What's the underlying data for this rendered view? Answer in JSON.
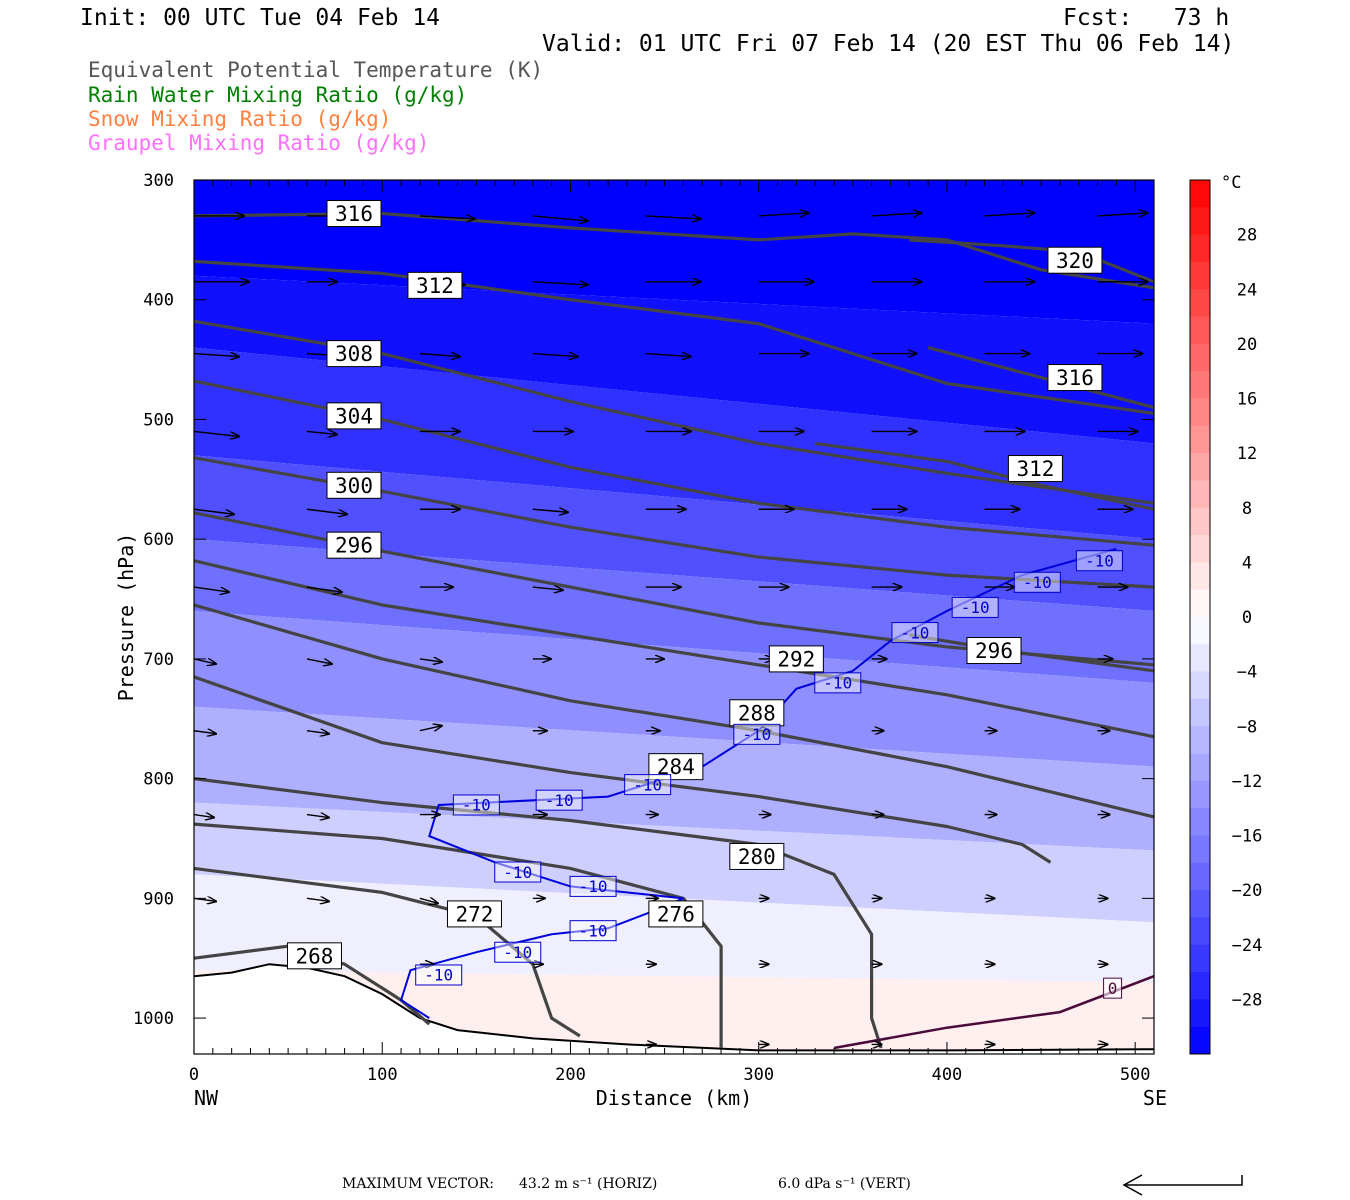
{
  "header": {
    "init": "Init: 00 UTC Tue 04 Feb 14",
    "fcst": "Fcst:   73 h",
    "valid": "Valid: 01 UTC Fri 07 Feb 14 (20 EST Thu 06 Feb 14)"
  },
  "legend": [
    {
      "label": "Equivalent Potential Temperature (K)",
      "color": "#555555"
    },
    {
      "label": "Rain Water Mixing Ratio (g/kg)",
      "color": "#008000"
    },
    {
      "label": "Snow Mixing Ratio (g/kg)",
      "color": "#ff8040"
    },
    {
      "label": "Graupel Mixing Ratio (g/kg)",
      "color": "#ff70ff"
    }
  ],
  "footer": {
    "max_vector_label": "MAXIMUM VECTOR:",
    "horiz": "43.2 m s⁻¹ (HORIZ)",
    "vert": "6.0 dPa s⁻¹ (VERT)"
  },
  "chart_data": {
    "type": "cross-section",
    "xlabel": "Distance (km)",
    "ylabel": "Pressure (hPa)",
    "x_ticks": [
      0,
      100,
      200,
      300,
      400,
      500
    ],
    "x_end_labels": {
      "left": "NW",
      "right": "SE"
    },
    "y_ticks": [
      300,
      400,
      500,
      600,
      700,
      800,
      900,
      1000
    ],
    "xlim": [
      0,
      510
    ],
    "ylim": [
      300,
      1030
    ],
    "colorbar": {
      "unit": "°C",
      "tick_labels": [
        28,
        24,
        20,
        16,
        12,
        8,
        4,
        0,
        -4,
        -8,
        -12,
        -16,
        -20,
        -24,
        -28
      ],
      "range": [
        -32,
        32
      ],
      "step": 2
    },
    "temperature_fill_lines": [
      {
        "p_left": 300,
        "p_right": 300,
        "t": -40
      },
      {
        "p_left": 380,
        "p_right": 420,
        "t": -32
      },
      {
        "p_left": 440,
        "p_right": 520,
        "t": -28
      },
      {
        "p_left": 530,
        "p_right": 600,
        "t": -24
      },
      {
        "p_left": 600,
        "p_right": 660,
        "t": -20
      },
      {
        "p_left": 660,
        "p_right": 720,
        "t": -16
      },
      {
        "p_left": 740,
        "p_right": 790,
        "t": -12
      },
      {
        "p_left": 820,
        "p_right": 860,
        "t": -8
      },
      {
        "p_left": 880,
        "p_right": 920,
        "t": -4
      },
      {
        "p_left": 960,
        "p_right": 970,
        "t": 0
      },
      {
        "p_left": 1040,
        "p_right": 1040,
        "t": 4
      }
    ],
    "theta_e_contours": [
      {
        "label": "316",
        "points": [
          [
            0,
            330
          ],
          [
            100,
            328
          ],
          [
            200,
            340
          ],
          [
            300,
            350
          ],
          [
            350,
            345
          ],
          [
            400,
            350
          ],
          [
            450,
            375
          ],
          [
            510,
            390
          ]
        ],
        "label_at": [
          85,
          328
        ]
      },
      {
        "label": "320",
        "points": [
          [
            380,
            350
          ],
          [
            430,
            355
          ],
          [
            470,
            360
          ],
          [
            510,
            385
          ]
        ],
        "label_at": [
          468,
          367
        ]
      },
      {
        "label": "312",
        "points": [
          [
            0,
            368
          ],
          [
            100,
            378
          ],
          [
            200,
            400
          ],
          [
            300,
            420
          ],
          [
            400,
            470
          ],
          [
            510,
            495
          ]
        ],
        "label_at": [
          128,
          388
        ]
      },
      {
        "label": "316",
        "points": [
          [
            390,
            440
          ],
          [
            450,
            465
          ],
          [
            510,
            490
          ]
        ],
        "label_at": [
          468,
          465
        ]
      },
      {
        "label": "308",
        "points": [
          [
            0,
            418
          ],
          [
            100,
            445
          ],
          [
            200,
            485
          ],
          [
            300,
            520
          ],
          [
            400,
            545
          ],
          [
            510,
            570
          ]
        ],
        "label_at": [
          85,
          445
        ]
      },
      {
        "label": "304",
        "points": [
          [
            0,
            468
          ],
          [
            100,
            500
          ],
          [
            200,
            540
          ],
          [
            300,
            570
          ],
          [
            400,
            590
          ],
          [
            510,
            605
          ]
        ],
        "label_at": [
          85,
          497
        ]
      },
      {
        "label": "312",
        "points": [
          [
            330,
            520
          ],
          [
            400,
            535
          ],
          [
            450,
            555
          ],
          [
            510,
            575
          ]
        ],
        "label_at": [
          447,
          541
        ]
      },
      {
        "label": "300",
        "points": [
          [
            0,
            532
          ],
          [
            100,
            560
          ],
          [
            200,
            590
          ],
          [
            300,
            615
          ],
          [
            400,
            630
          ],
          [
            510,
            640
          ]
        ],
        "label_at": [
          85,
          555
        ]
      },
      {
        "label": "296",
        "points": [
          [
            0,
            578
          ],
          [
            100,
            610
          ],
          [
            200,
            640
          ],
          [
            300,
            670
          ],
          [
            400,
            690
          ],
          [
            510,
            705
          ]
        ],
        "label_at": [
          85,
          605
        ]
      },
      {
        "label": "296",
        "points": [
          [
            380,
            680
          ],
          [
            430,
            693
          ],
          [
            510,
            710
          ]
        ],
        "label_at": [
          425,
          693
        ]
      },
      {
        "label": "292",
        "points": [
          [
            0,
            618
          ],
          [
            100,
            655
          ],
          [
            200,
            680
          ],
          [
            300,
            705
          ],
          [
            400,
            730
          ],
          [
            510,
            765
          ]
        ],
        "label_at": [
          320,
          700
        ]
      },
      {
        "label": "288",
        "points": [
          [
            0,
            655
          ],
          [
            100,
            700
          ],
          [
            200,
            735
          ],
          [
            300,
            760
          ],
          [
            400,
            790
          ],
          [
            510,
            832
          ]
        ],
        "label_at": [
          299,
          745
        ]
      },
      {
        "label": "284",
        "points": [
          [
            0,
            715
          ],
          [
            100,
            770
          ],
          [
            200,
            795
          ],
          [
            300,
            815
          ],
          [
            400,
            840
          ],
          [
            440,
            855
          ],
          [
            455,
            870
          ]
        ],
        "label_at": [
          256,
          790
        ]
      },
      {
        "label": "280",
        "points": [
          [
            0,
            800
          ],
          [
            100,
            820
          ],
          [
            200,
            835
          ],
          [
            300,
            855
          ],
          [
            340,
            880
          ],
          [
            360,
            930
          ],
          [
            360,
            1000
          ],
          [
            365,
            1025
          ]
        ],
        "label_at": [
          299,
          865
        ]
      },
      {
        "label": "276",
        "points": [
          [
            0,
            838
          ],
          [
            100,
            850
          ],
          [
            200,
            875
          ],
          [
            260,
            900
          ],
          [
            280,
            940
          ],
          [
            280,
            1025
          ]
        ],
        "label_at": [
          256,
          913
        ]
      },
      {
        "label": "272",
        "points": [
          [
            0,
            875
          ],
          [
            100,
            895
          ],
          [
            150,
            915
          ],
          [
            180,
            955
          ],
          [
            190,
            1000
          ],
          [
            205,
            1015
          ]
        ],
        "label_at": [
          149,
          913
        ]
      },
      {
        "label": "268",
        "points": [
          [
            0,
            950
          ],
          [
            50,
            940
          ],
          [
            80,
            955
          ],
          [
            110,
            985
          ],
          [
            125,
            1005
          ]
        ],
        "label_at": [
          64,
          948
        ]
      }
    ],
    "temperature_minus10_contour": {
      "label": "-10",
      "points": [
        [
          490,
          608
        ],
        [
          440,
          630
        ],
        [
          400,
          660
        ],
        [
          370,
          685
        ],
        [
          350,
          710
        ],
        [
          320,
          725
        ],
        [
          300,
          760
        ],
        [
          270,
          790
        ],
        [
          220,
          815
        ],
        [
          130,
          822
        ],
        [
          125,
          848
        ],
        [
          160,
          870
        ],
        [
          200,
          890
        ],
        [
          260,
          900
        ],
        [
          245,
          910
        ],
        [
          220,
          925
        ],
        [
          190,
          930
        ],
        [
          150,
          945
        ],
        [
          115,
          960
        ],
        [
          110,
          985
        ],
        [
          125,
          1000
        ]
      ],
      "label_points": [
        [
          481,
          618
        ],
        [
          448,
          636
        ],
        [
          415,
          657
        ],
        [
          383,
          678
        ],
        [
          342,
          720
        ],
        [
          299,
          763
        ],
        [
          241,
          805
        ],
        [
          194,
          818
        ],
        [
          150,
          822
        ],
        [
          172,
          878
        ],
        [
          212,
          890
        ],
        [
          212,
          927
        ],
        [
          172,
          945
        ],
        [
          130,
          964
        ]
      ]
    },
    "temperature_zero_contour": {
      "label": "0",
      "points": [
        [
          340,
          1025
        ],
        [
          400,
          1008
        ],
        [
          460,
          995
        ],
        [
          510,
          965
        ]
      ],
      "label_at": [
        488,
        975
      ]
    },
    "vectors": {
      "rows": [
        {
          "p": 330,
          "x": [
            0,
            60,
            120,
            180,
            240,
            300,
            360,
            420,
            480
          ],
          "dx": [
            50,
            48,
            55,
            55,
            55,
            50,
            50,
            50,
            50
          ],
          "dy": [
            0,
            0,
            3,
            5,
            3,
            -3,
            -3,
            -3,
            -3
          ]
        },
        {
          "p": 385,
          "x": [
            0,
            60,
            120,
            180,
            240,
            300,
            360,
            420,
            480
          ],
          "dx": [
            55,
            30,
            45,
            55,
            55,
            55,
            50,
            50,
            50
          ],
          "dy": [
            0,
            0,
            3,
            3,
            0,
            0,
            0,
            0,
            0
          ]
        },
        {
          "p": 445,
          "x": [
            0,
            60,
            120,
            180,
            240,
            300,
            360,
            420,
            480
          ],
          "dx": [
            45,
            45,
            40,
            45,
            45,
            50,
            45,
            45,
            45
          ],
          "dy": [
            3,
            3,
            3,
            3,
            3,
            0,
            0,
            0,
            0
          ]
        },
        {
          "p": 510,
          "x": [
            0,
            60,
            120,
            180,
            240,
            300,
            360,
            420,
            480
          ],
          "dx": [
            45,
            30,
            40,
            40,
            45,
            45,
            45,
            40,
            40
          ],
          "dy": [
            5,
            3,
            0,
            0,
            0,
            0,
            0,
            0,
            0
          ]
        },
        {
          "p": 575,
          "x": [
            0,
            60,
            120,
            180,
            240,
            300,
            360,
            420,
            480
          ],
          "dx": [
            40,
            40,
            40,
            35,
            40,
            35,
            35,
            35,
            35
          ],
          "dy": [
            5,
            5,
            0,
            3,
            0,
            0,
            0,
            0,
            0
          ]
        },
        {
          "p": 640,
          "x": [
            0,
            60,
            120,
            180,
            240,
            300,
            360,
            420,
            480
          ],
          "dx": [
            35,
            35,
            33,
            30,
            35,
            30,
            30,
            30,
            30
          ],
          "dy": [
            5,
            5,
            0,
            3,
            0,
            0,
            0,
            0,
            0
          ]
        },
        {
          "p": 700,
          "x": [
            0,
            60,
            120,
            180,
            240,
            300,
            360,
            420,
            480
          ],
          "dx": [
            22,
            25,
            22,
            18,
            18,
            15,
            15,
            15,
            15
          ],
          "dy": [
            5,
            5,
            3,
            0,
            0,
            0,
            0,
            0,
            0
          ]
        },
        {
          "p": 760,
          "x": [
            0,
            60,
            120,
            180,
            240,
            300,
            360,
            420,
            480
          ],
          "dx": [
            22,
            22,
            22,
            14,
            14,
            12,
            12,
            12,
            12
          ],
          "dy": [
            3,
            3,
            -5,
            0,
            0,
            0,
            0,
            0,
            0
          ]
        },
        {
          "p": 830,
          "x": [
            0,
            60,
            120,
            180,
            240,
            300,
            360,
            420,
            480
          ],
          "dx": [
            20,
            22,
            20,
            14,
            12,
            12,
            12,
            12,
            12
          ],
          "dy": [
            3,
            3,
            0,
            0,
            0,
            0,
            0,
            0,
            0
          ]
        },
        {
          "p": 900,
          "x": [
            0,
            60,
            120,
            180,
            240,
            300,
            360,
            420,
            480
          ],
          "dx": [
            22,
            22,
            18,
            12,
            12,
            10,
            10,
            10,
            10
          ],
          "dy": [
            3,
            3,
            5,
            0,
            0,
            0,
            0,
            0,
            0
          ]
        },
        {
          "p": 955,
          "x": [
            120,
            180,
            240,
            300,
            360,
            420,
            480
          ],
          "dx": [
            14,
            10,
            10,
            10,
            10,
            10,
            10
          ],
          "dy": [
            0,
            0,
            0,
            0,
            0,
            0,
            0
          ]
        },
        {
          "p": 1022,
          "x": [
            240,
            300,
            360,
            420,
            480
          ],
          "dx": [
            10,
            10,
            10,
            10,
            10
          ],
          "dy": [
            0,
            0,
            0,
            0,
            0
          ]
        }
      ]
    },
    "terrain": [
      [
        0,
        965
      ],
      [
        20,
        962
      ],
      [
        40,
        955
      ],
      [
        60,
        958
      ],
      [
        80,
        965
      ],
      [
        100,
        980
      ],
      [
        120,
        1000
      ],
      [
        140,
        1010
      ],
      [
        180,
        1017
      ],
      [
        230,
        1022
      ],
      [
        300,
        1027
      ],
      [
        400,
        1027
      ],
      [
        510,
        1026
      ]
    ]
  }
}
